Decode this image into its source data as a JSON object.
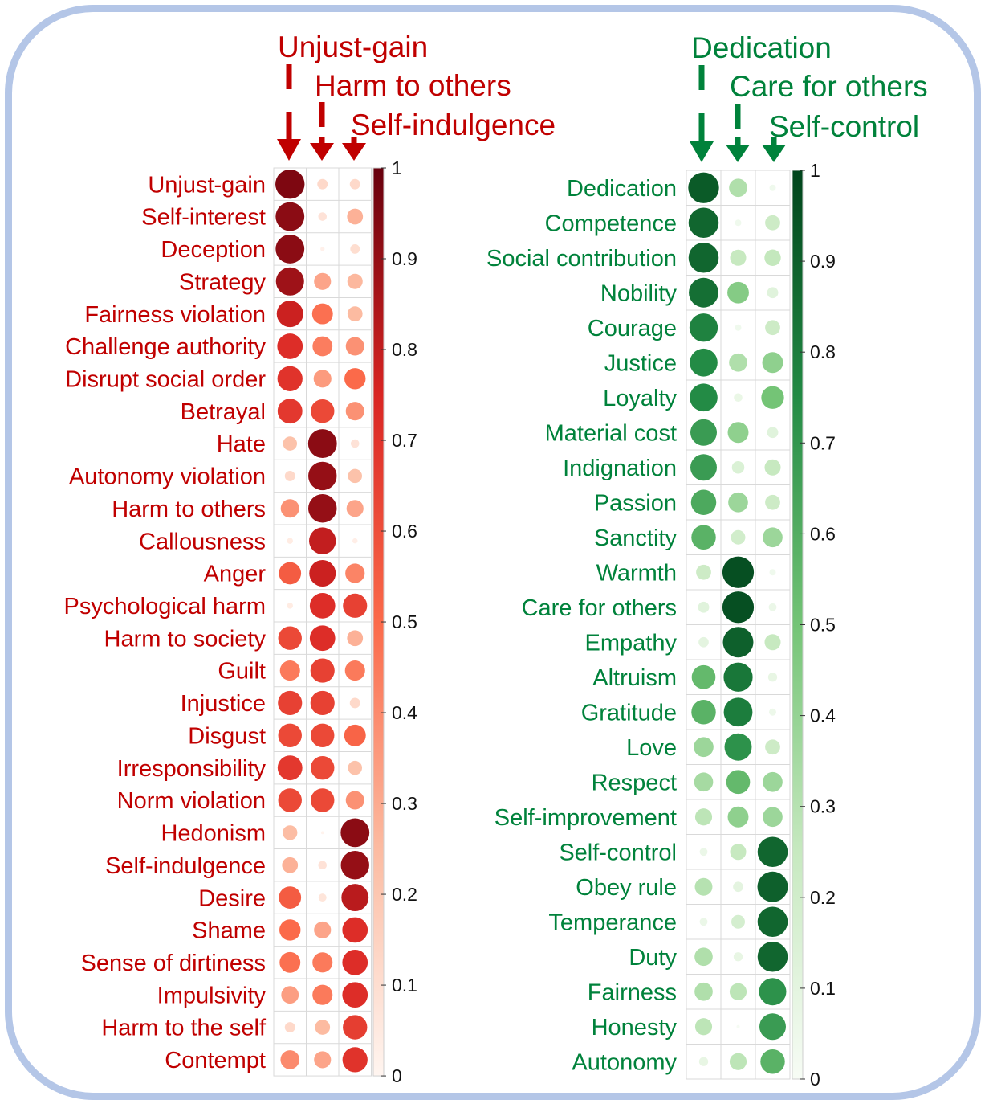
{
  "colors": {
    "frame": "#b4c6e7",
    "red_text": "#c00000",
    "green_text": "#00823b",
    "grid": "#d9d9d9"
  },
  "chart_data": [
    {
      "type": "heatmap",
      "title": "",
      "columns": [
        "Unjust-gain",
        "Harm to others",
        "Self-indulgence"
      ],
      "rows": [
        "Unjust-gain",
        "Self-interest",
        "Deception",
        "Strategy",
        "Fairness violation",
        "Challenge authority",
        "Disrupt social order",
        "Betrayal",
        "Hate",
        "Autonomy violation",
        "Harm to others",
        "Callousness",
        "Anger",
        "Psychological harm",
        "Harm to society",
        "Guilt",
        "Injustice",
        "Disgust",
        "Irresponsibility",
        "Norm violation",
        "Hedonism",
        "Self-indulgence",
        "Desire",
        "Shame",
        "Sense of dirtiness",
        "Impulsivity",
        "Harm to the self",
        "Contempt"
      ],
      "values": [
        [
          0.95,
          0.12,
          0.12
        ],
        [
          0.92,
          0.08,
          0.28
        ],
        [
          0.92,
          0.02,
          0.1
        ],
        [
          0.88,
          0.32,
          0.26
        ],
        [
          0.78,
          0.48,
          0.25
        ],
        [
          0.72,
          0.44,
          0.38
        ],
        [
          0.7,
          0.35,
          0.5
        ],
        [
          0.68,
          0.62,
          0.38
        ],
        [
          0.22,
          0.92,
          0.08
        ],
        [
          0.12,
          0.9,
          0.22
        ],
        [
          0.38,
          0.9,
          0.32
        ],
        [
          0.04,
          0.8,
          0.03
        ],
        [
          0.55,
          0.78,
          0.42
        ],
        [
          0.04,
          0.72,
          0.65
        ],
        [
          0.62,
          0.72,
          0.28
        ],
        [
          0.45,
          0.65,
          0.45
        ],
        [
          0.65,
          0.65,
          0.12
        ],
        [
          0.62,
          0.62,
          0.52
        ],
        [
          0.68,
          0.62,
          0.22
        ],
        [
          0.62,
          0.62,
          0.38
        ],
        [
          0.24,
          0.01,
          0.92
        ],
        [
          0.28,
          0.08,
          0.9
        ],
        [
          0.55,
          0.07,
          0.82
        ],
        [
          0.5,
          0.32,
          0.72
        ],
        [
          0.48,
          0.45,
          0.72
        ],
        [
          0.34,
          0.45,
          0.72
        ],
        [
          0.12,
          0.25,
          0.66
        ],
        [
          0.4,
          0.32,
          0.7
        ]
      ],
      "legend": {
        "min": 0,
        "max": 1,
        "ticks": [
          "0",
          "0.1",
          "0.2",
          "0.3",
          "0.4",
          "0.5",
          "0.6",
          "0.7",
          "0.8",
          "0.9",
          "1"
        ]
      }
    },
    {
      "type": "heatmap",
      "title": "",
      "columns": [
        "Dedication",
        "Care for others",
        "Self-control"
      ],
      "rows": [
        "Dedication",
        "Competence",
        "Social contribution",
        "Nobility",
        "Courage",
        "Justice",
        "Loyalty",
        "Material cost",
        "Indignation",
        "Passion",
        "Sanctity",
        "Warmth",
        "Care for others",
        "Empathy",
        "Altruism",
        "Gratitude",
        "Love",
        "Respect",
        "Self-improvement",
        "Self-control",
        "Obey rule",
        "Temperance",
        "Duty",
        "Fairness",
        "Honesty",
        "Autonomy"
      ],
      "values": [
        [
          0.92,
          0.32,
          0.04
        ],
        [
          0.88,
          0.04,
          0.22
        ],
        [
          0.88,
          0.25,
          0.26
        ],
        [
          0.85,
          0.45,
          0.12
        ],
        [
          0.78,
          0.04,
          0.22
        ],
        [
          0.75,
          0.32,
          0.42
        ],
        [
          0.75,
          0.07,
          0.5
        ],
        [
          0.68,
          0.42,
          0.12
        ],
        [
          0.68,
          0.15,
          0.25
        ],
        [
          0.62,
          0.38,
          0.22
        ],
        [
          0.58,
          0.2,
          0.38
        ],
        [
          0.22,
          0.96,
          0.04
        ],
        [
          0.12,
          0.96,
          0.06
        ],
        [
          0.1,
          0.9,
          0.25
        ],
        [
          0.55,
          0.82,
          0.08
        ],
        [
          0.58,
          0.8,
          0.05
        ],
        [
          0.38,
          0.72,
          0.22
        ],
        [
          0.35,
          0.55,
          0.38
        ],
        [
          0.28,
          0.42,
          0.38
        ],
        [
          0.06,
          0.25,
          0.88
        ],
        [
          0.3,
          0.1,
          0.9
        ],
        [
          0.06,
          0.18,
          0.88
        ],
        [
          0.32,
          0.08,
          0.88
        ],
        [
          0.32,
          0.28,
          0.72
        ],
        [
          0.28,
          0.01,
          0.68
        ],
        [
          0.08,
          0.28,
          0.58
        ]
      ],
      "legend": {
        "min": 0,
        "max": 1,
        "ticks": [
          "0",
          "0.1",
          "0.2",
          "0.3",
          "0.4",
          "0.5",
          "0.6",
          "0.7",
          "0.8",
          "0.9",
          "1"
        ]
      }
    }
  ]
}
